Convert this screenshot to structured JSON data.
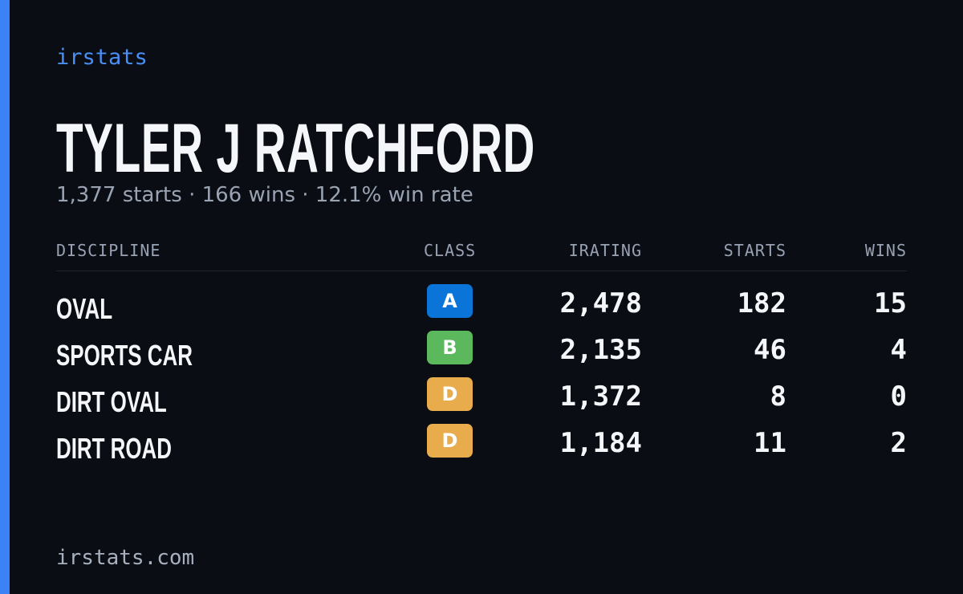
{
  "header": {
    "brand": "irstats"
  },
  "driver": {
    "name": "TYLER J RATCHFORD",
    "summary": "1,377 starts · 166 wins · 12.1% win rate"
  },
  "table": {
    "columns": [
      "DISCIPLINE",
      "CLASS",
      "IRATING",
      "STARTS",
      "WINS"
    ],
    "rows": [
      [
        "OVAL",
        "A",
        "2,478",
        "182",
        "15"
      ],
      [
        "SPORTS CAR",
        "B",
        "2,135",
        "46",
        "4"
      ],
      [
        "DIRT OVAL",
        "D",
        "1,372",
        "8",
        "0"
      ],
      [
        "DIRT ROAD",
        "D",
        "1,184",
        "11",
        "2"
      ]
    ]
  },
  "footer": {
    "url": "irstats.com"
  }
}
